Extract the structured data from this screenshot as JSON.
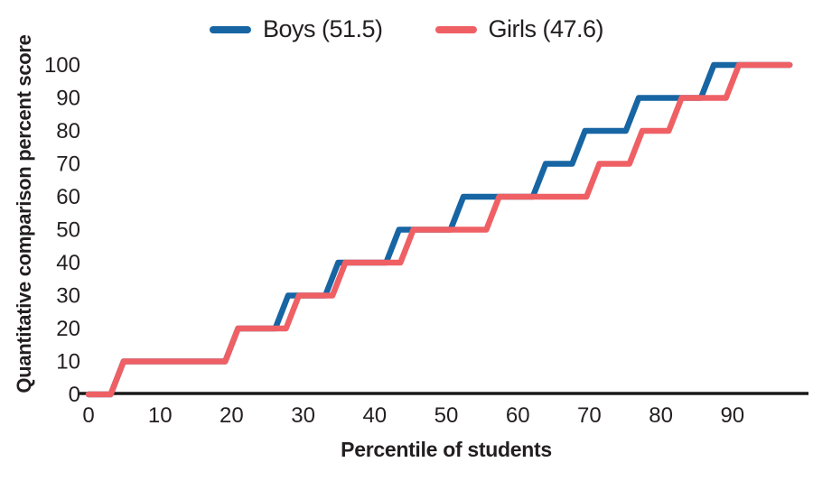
{
  "chart_data": {
    "type": "line",
    "line_style": "step",
    "title": "",
    "xlabel": "Percentile of students",
    "ylabel": "Quantitative comparison percent score",
    "xlim": [
      0,
      101
    ],
    "ylim": [
      0,
      103
    ],
    "xticks": [
      0,
      10,
      20,
      30,
      40,
      50,
      60,
      70,
      80,
      90
    ],
    "yticks": [
      0,
      10,
      20,
      30,
      40,
      50,
      60,
      70,
      80,
      90,
      100
    ],
    "grid": false,
    "legend_position": "top-center",
    "axis_color": "#1a1a1a",
    "text_color": "#231f20",
    "series": [
      {
        "name": "Boys (51.5)",
        "color": "#1765a3",
        "start": [
          0,
          0
        ],
        "step_x": [
          4,
          20,
          27,
          34,
          42.5,
          51.5,
          63,
          68.5,
          76,
          86.5
        ],
        "step_to": [
          10,
          20,
          30,
          40,
          50,
          60,
          70,
          80,
          90,
          100
        ],
        "end_x": 98
      },
      {
        "name": "Girls (47.6)",
        "color": "#ef6065",
        "start": [
          0,
          0
        ],
        "step_x": [
          4,
          20,
          28.5,
          35,
          44.5,
          56.5,
          70.5,
          76.5,
          82,
          90
        ],
        "step_to": [
          10,
          20,
          30,
          40,
          50,
          60,
          70,
          80,
          90,
          100
        ],
        "end_x": 98
      }
    ]
  }
}
